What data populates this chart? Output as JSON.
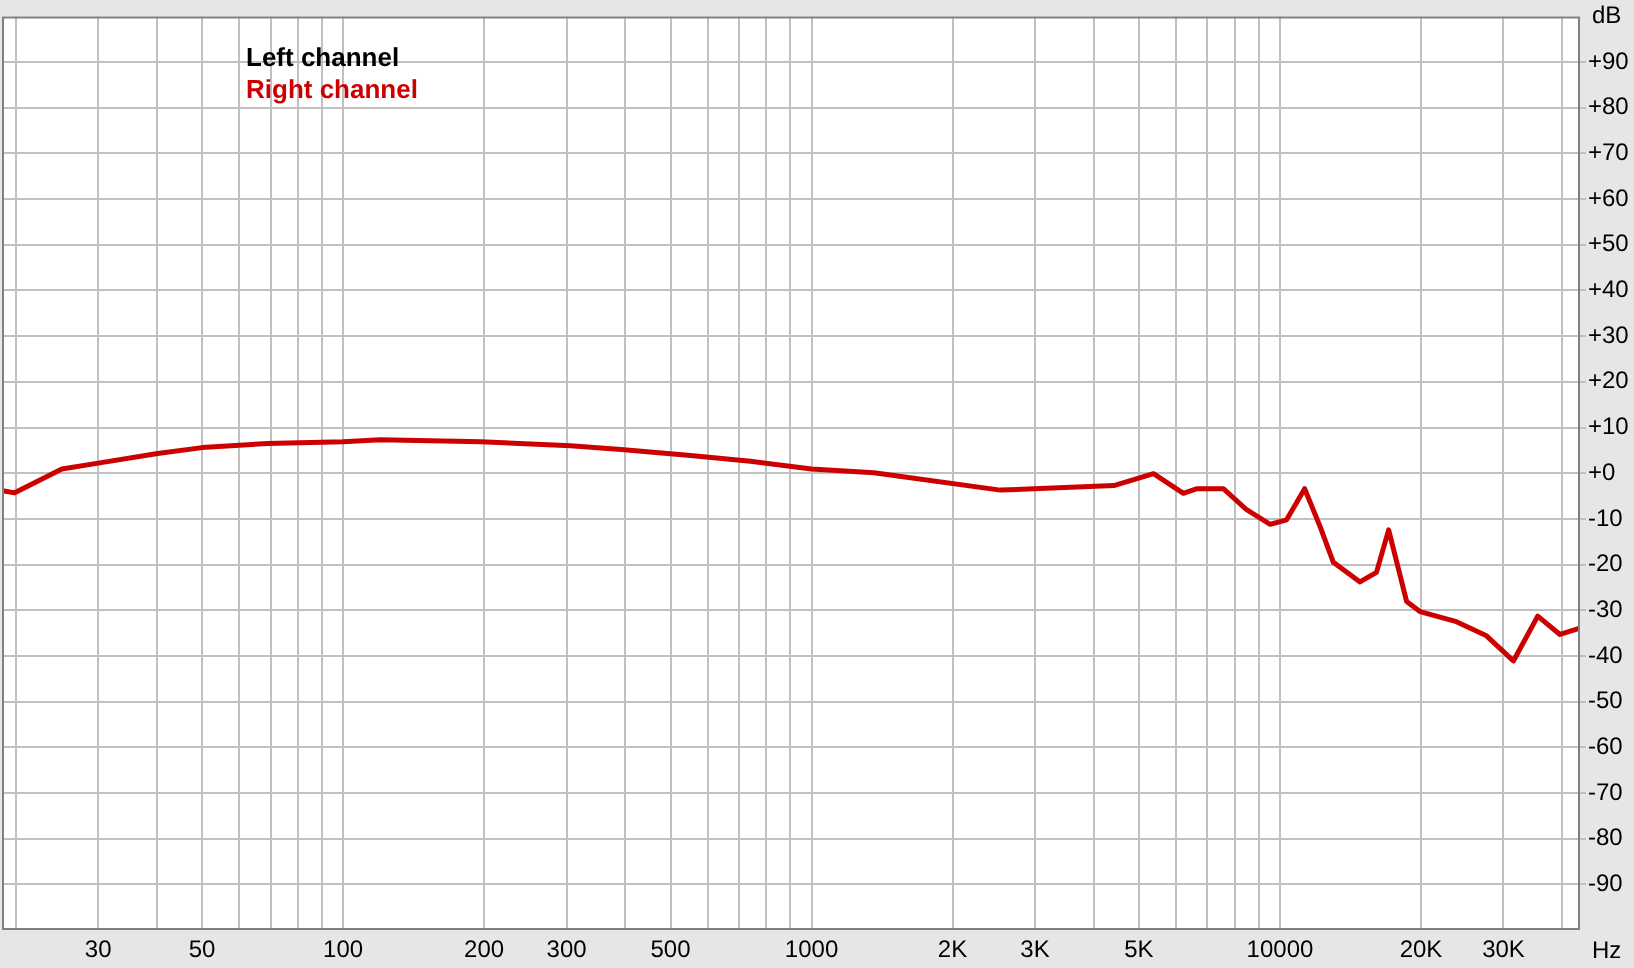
{
  "chart_data": {
    "type": "line",
    "xlabel": "Hz",
    "ylabel": "dB",
    "x": [
      18.9,
      19.9,
      25.1,
      30,
      40.2,
      50,
      68.9,
      100,
      120,
      197,
      306,
      392,
      552,
      741,
      1000,
      1359,
      2530,
      4420,
      5370,
      6220,
      6650,
      7570,
      8490,
      9530,
      10330,
      11290,
      12170,
      13000,
      14820,
      16070,
      17060,
      18640,
      19900,
      23800,
      27600,
      31500,
      35500,
      39600,
      43700
    ],
    "series": [
      {
        "name": "Left channel",
        "color": "#000000",
        "values": [
          null,
          null,
          null,
          null,
          null,
          null,
          null,
          null,
          null,
          null,
          null,
          null,
          null,
          null,
          null,
          null,
          null,
          null,
          null,
          null,
          null,
          null,
          null,
          null,
          null,
          null,
          null,
          null,
          null,
          null,
          null,
          null,
          null,
          null,
          null,
          null,
          null,
          null,
          null
        ]
      },
      {
        "name": "Right channel",
        "color": "#cc0000",
        "values": [
          -3.9,
          -4.3,
          0.9,
          2.2,
          4.3,
          5.6,
          6.5,
          6.9,
          7.3,
          6.9,
          6,
          5.2,
          3.9,
          2.6,
          0.9,
          0.1,
          -3.7,
          -2.7,
          -0.1,
          -4.4,
          -3.4,
          -3.4,
          -8,
          -11.2,
          -10.2,
          -3.4,
          -11.6,
          -19.5,
          -23.8,
          -21.7,
          -12.4,
          -28.1,
          -30.3,
          -32.5,
          -35.6,
          -41.1,
          -31.3,
          -35.3,
          -33.9
        ]
      }
    ],
    "log": "x",
    "xlim": [
      18.7,
      43700
    ],
    "xticks": [
      {
        "value": 20,
        "label": null
      },
      30,
      {
        "value": 40,
        "label": null
      },
      50,
      {
        "value": 60,
        "label": null
      },
      {
        "value": 70,
        "label": null
      },
      {
        "value": 80,
        "label": null
      },
      {
        "value": 90,
        "label": null
      },
      100,
      200,
      300,
      {
        "value": 400,
        "label": null
      },
      500,
      {
        "value": 600,
        "label": null
      },
      {
        "value": 700,
        "label": null
      },
      {
        "value": 800,
        "label": null
      },
      {
        "value": 900,
        "label": null
      },
      1000,
      {
        "value": 2000,
        "label": "2K"
      },
      {
        "value": 3000,
        "label": "3K"
      },
      {
        "value": 4000,
        "label": null
      },
      {
        "value": 5000,
        "label": "5K"
      },
      {
        "value": 6000,
        "label": null
      },
      {
        "value": 7000,
        "label": null
      },
      {
        "value": 8000,
        "label": null
      },
      {
        "value": 9000,
        "label": null
      },
      10000,
      {
        "value": 20000,
        "label": "20K"
      },
      {
        "value": 30000,
        "label": "30K"
      },
      {
        "value": 40000,
        "label": null
      }
    ],
    "ylim": [
      -100,
      100
    ],
    "yticks": [
      {
        "value": -90,
        "label": "-90"
      },
      {
        "value": -80,
        "label": "-80"
      },
      {
        "value": -70,
        "label": "-70"
      },
      {
        "value": -60,
        "label": "-60"
      },
      {
        "value": -50,
        "label": "-50"
      },
      {
        "value": -40,
        "label": "-40"
      },
      {
        "value": -30,
        "label": "-30"
      },
      {
        "value": -20,
        "label": "-20"
      },
      {
        "value": -10,
        "label": "-10"
      },
      {
        "value": 0,
        "label": "+0"
      },
      {
        "value": 10,
        "label": "+10"
      },
      {
        "value": 20,
        "label": "+20"
      },
      {
        "value": 30,
        "label": "+30"
      },
      {
        "value": 40,
        "label": "+40"
      },
      {
        "value": 50,
        "label": "+50"
      },
      {
        "value": 60,
        "label": "+60"
      },
      {
        "value": 70,
        "label": "+70"
      },
      {
        "value": 80,
        "label": "+80"
      },
      {
        "value": 90,
        "label": "+90"
      }
    ],
    "grid": true,
    "legend": "top left",
    "marker": "none",
    "line_style": "solid"
  }
}
